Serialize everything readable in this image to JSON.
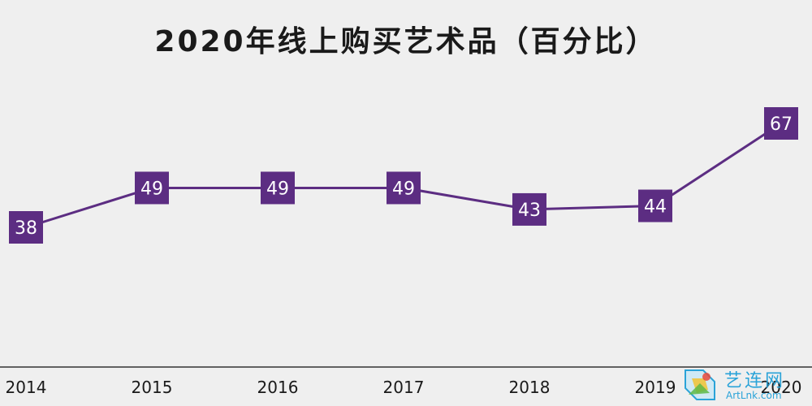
{
  "chart_data": {
    "type": "line",
    "title": "2020年线上购买艺术品（百分比）",
    "categories": [
      "2014",
      "2015",
      "2016",
      "2017",
      "2018",
      "2019",
      "2020"
    ],
    "series": [
      {
        "values": [
          38,
          49,
          49,
          49,
          43,
          44,
          67
        ]
      }
    ],
    "data_labels": [
      "38",
      "49",
      "49",
      "49",
      "43",
      "44",
      "67"
    ],
    "ylim": [
      20,
      75
    ],
    "grid": false,
    "line_color": "#5c2d82",
    "label_box_color": "#5c2d82",
    "axis_color": "#333333"
  },
  "watermark": {
    "text_cn": "艺连网",
    "text_en": "ArtLnk.com",
    "color": "#2aa3d8"
  }
}
